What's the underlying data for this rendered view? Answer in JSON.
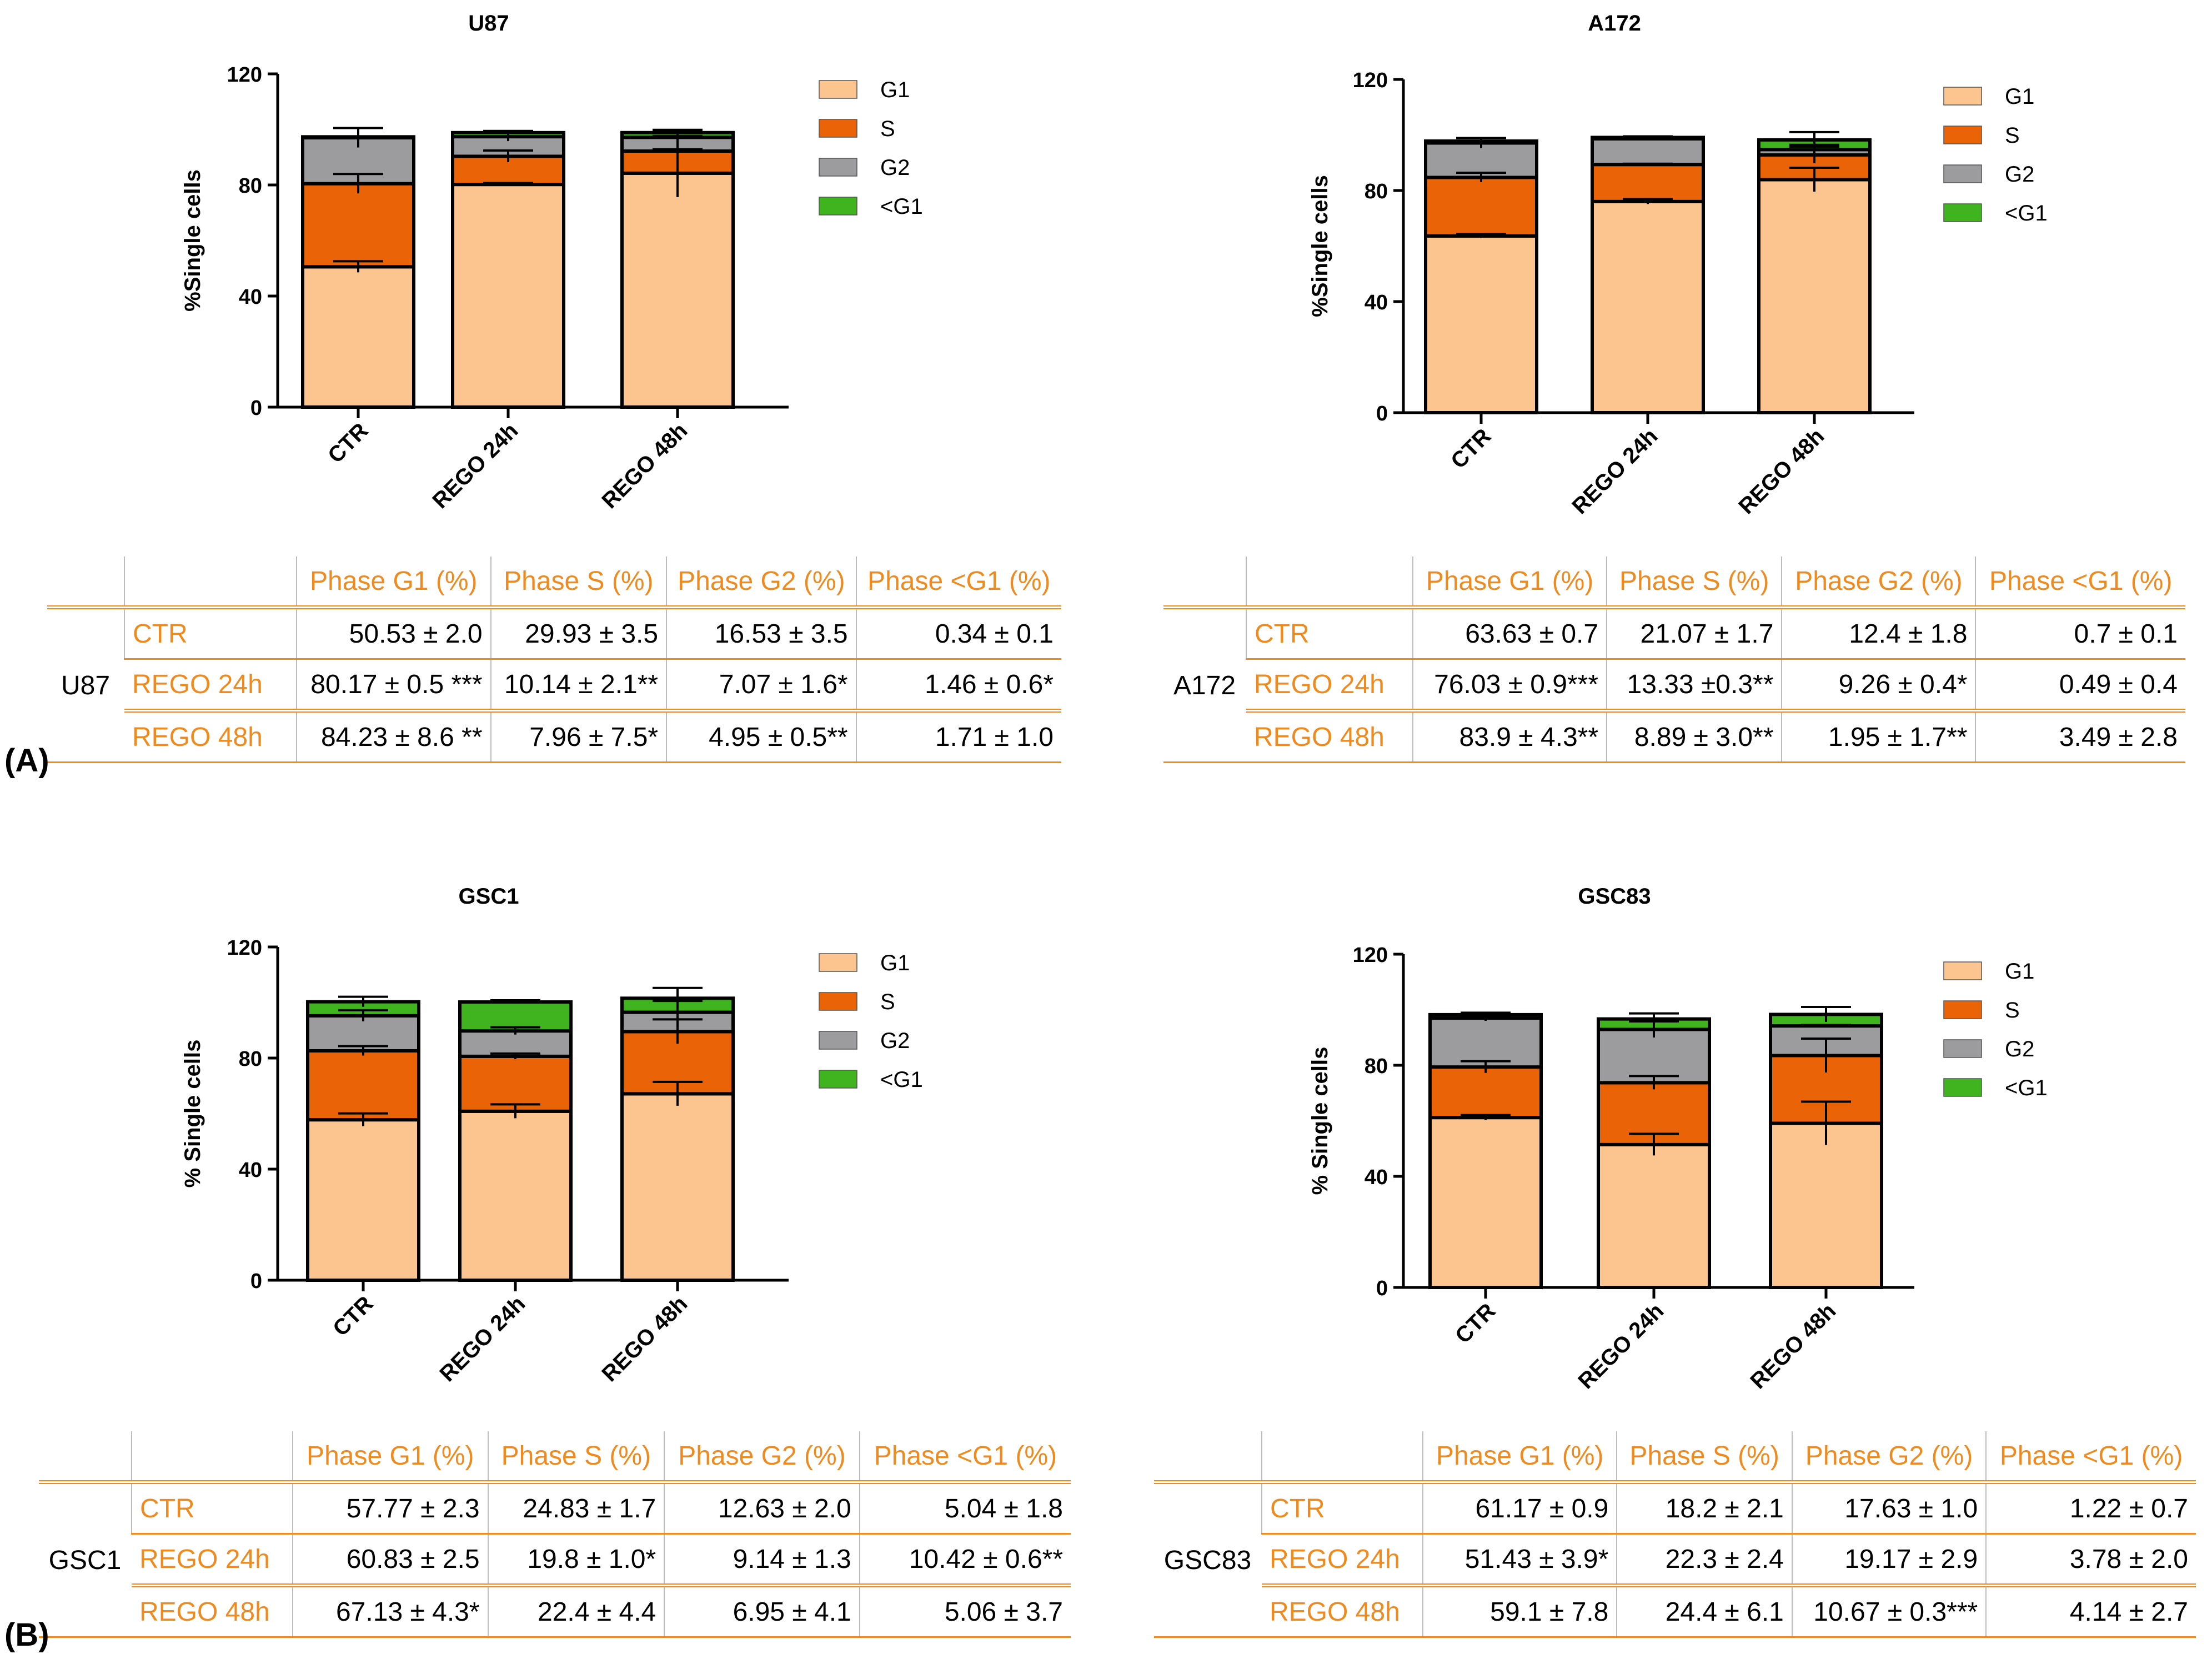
{
  "colors": {
    "G1": "#fcc590",
    "S": "#eb6307",
    "G2": "#9c9c9f",
    "subG1": "#3fb41e",
    "accent": "#ef8a1f"
  },
  "panel_labels": {
    "a": "(A)",
    "b": "(B)"
  },
  "chart_data": [
    {
      "type": "bar",
      "stacked": true,
      "title": "U87",
      "ylabel": "%Single cells",
      "ylim": [
        0,
        120
      ],
      "yticks": [
        0,
        40,
        80,
        120
      ],
      "categories": [
        "CTR",
        "REGO 24h",
        "REGO 48h"
      ],
      "legend": [
        "G1",
        "S",
        "G2",
        "<G1"
      ],
      "series": [
        {
          "name": "G1",
          "color_key": "G1",
          "values": [
            50.53,
            80.17,
            84.23
          ],
          "errors": [
            2.0,
            0.5,
            8.6
          ]
        },
        {
          "name": "S",
          "color_key": "S",
          "values": [
            29.93,
            10.14,
            7.96
          ],
          "errors": [
            3.5,
            2.1,
            7.5
          ]
        },
        {
          "name": "G2",
          "color_key": "G2",
          "values": [
            16.53,
            7.07,
            4.95
          ],
          "errors": [
            3.5,
            1.6,
            0.5
          ]
        },
        {
          "name": "<G1",
          "color_key": "subG1",
          "values": [
            0.34,
            1.46,
            1.71
          ],
          "errors": [
            0.1,
            0.6,
            1.0
          ]
        }
      ]
    },
    {
      "type": "bar",
      "stacked": true,
      "title": "A172",
      "ylabel": "%Single cells",
      "ylim": [
        0,
        120
      ],
      "yticks": [
        0,
        40,
        80,
        120
      ],
      "categories": [
        "CTR",
        "REGO 24h",
        "REGO 48h"
      ],
      "legend": [
        "G1",
        "S",
        "G2",
        "<G1"
      ],
      "series": [
        {
          "name": "G1",
          "color_key": "G1",
          "values": [
            63.63,
            76.03,
            83.9
          ],
          "errors": [
            0.7,
            0.9,
            4.3
          ]
        },
        {
          "name": "S",
          "color_key": "S",
          "values": [
            21.07,
            13.33,
            8.89
          ],
          "errors": [
            1.7,
            0.3,
            3.0
          ]
        },
        {
          "name": "G2",
          "color_key": "G2",
          "values": [
            12.4,
            9.26,
            1.95
          ],
          "errors": [
            1.8,
            0.4,
            1.7
          ]
        },
        {
          "name": "<G1",
          "color_key": "subG1",
          "values": [
            0.7,
            0.49,
            3.49
          ],
          "errors": [
            0.1,
            0.4,
            2.8
          ]
        }
      ]
    },
    {
      "type": "bar",
      "stacked": true,
      "title": "GSC1",
      "ylabel": "% Single cells",
      "ylim": [
        0,
        120
      ],
      "yticks": [
        0,
        40,
        80,
        120
      ],
      "categories": [
        "CTR",
        "REGO 24h",
        "REGO 48h"
      ],
      "legend": [
        "G1",
        "S",
        "G2",
        "<G1"
      ],
      "series": [
        {
          "name": "G1",
          "color_key": "G1",
          "values": [
            57.77,
            60.83,
            67.13
          ],
          "errors": [
            2.3,
            2.5,
            4.3
          ]
        },
        {
          "name": "S",
          "color_key": "S",
          "values": [
            24.83,
            19.8,
            22.4
          ],
          "errors": [
            1.7,
            1.0,
            4.4
          ]
        },
        {
          "name": "G2",
          "color_key": "G2",
          "values": [
            12.63,
            9.14,
            6.95
          ],
          "errors": [
            2.0,
            1.3,
            4.1
          ]
        },
        {
          "name": "<G1",
          "color_key": "subG1",
          "values": [
            5.04,
            10.42,
            5.06
          ],
          "errors": [
            1.8,
            0.6,
            3.7
          ]
        }
      ]
    },
    {
      "type": "bar",
      "stacked": true,
      "title": "GSC83",
      "ylabel": "% Single cells",
      "ylim": [
        0,
        120
      ],
      "yticks": [
        0,
        40,
        80,
        120
      ],
      "categories": [
        "CTR",
        "REGO 24h",
        "REGO 48h"
      ],
      "legend": [
        "G1",
        "S",
        "G2",
        "<G1"
      ],
      "series": [
        {
          "name": "G1",
          "color_key": "G1",
          "values": [
            61.17,
            51.43,
            59.1
          ],
          "errors": [
            0.9,
            3.9,
            7.8
          ]
        },
        {
          "name": "S",
          "color_key": "S",
          "values": [
            18.2,
            22.3,
            24.4
          ],
          "errors": [
            2.1,
            2.4,
            6.1
          ]
        },
        {
          "name": "G2",
          "color_key": "G2",
          "values": [
            17.63,
            19.17,
            10.67
          ],
          "errors": [
            1.0,
            2.9,
            0.3
          ]
        },
        {
          "name": "<G1",
          "color_key": "subG1",
          "values": [
            1.22,
            3.78,
            4.14
          ],
          "errors": [
            0.7,
            2.0,
            2.7
          ]
        }
      ]
    }
  ],
  "tables": [
    {
      "line": "U87",
      "headers": [
        "Phase G1 (%)",
        "Phase S (%)",
        "Phase G2 (%)",
        "Phase <G1 (%)"
      ],
      "rows": [
        {
          "condition": "CTR",
          "cells": [
            "50.53 ± 2.0",
            "29.93 ± 3.5",
            "16.53 ± 3.5",
            "0.34 ± 0.1"
          ]
        },
        {
          "condition": "REGO 24h",
          "cells": [
            "80.17 ± 0.5 ***",
            "10.14 ± 2.1**",
            "7.07 ± 1.6*",
            "1.46 ± 0.6*"
          ]
        },
        {
          "condition": "REGO 48h",
          "cells": [
            "84.23 ± 8.6 **",
            "7.96 ± 7.5*",
            "4.95 ± 0.5**",
            "1.71 ± 1.0"
          ]
        }
      ]
    },
    {
      "line": "A172",
      "headers": [
        "Phase G1 (%)",
        "Phase S (%)",
        "Phase G2 (%)",
        "Phase <G1 (%)"
      ],
      "rows": [
        {
          "condition": "CTR",
          "cells": [
            "63.63 ± 0.7",
            "21.07 ± 1.7",
            "12.4 ± 1.8",
            "0.7 ± 0.1"
          ]
        },
        {
          "condition": "REGO 24h",
          "cells": [
            "76.03 ± 0.9***",
            "13.33 ±0.3**",
            "9.26 ± 0.4*",
            "0.49 ± 0.4"
          ]
        },
        {
          "condition": "REGO 48h",
          "cells": [
            "83.9 ± 4.3**",
            "8.89 ± 3.0**",
            "1.95 ± 1.7**",
            "3.49 ± 2.8"
          ]
        }
      ]
    },
    {
      "line": "GSC1",
      "headers": [
        "Phase G1 (%)",
        "Phase S (%)",
        "Phase G2 (%)",
        "Phase <G1 (%)"
      ],
      "rows": [
        {
          "condition": "CTR",
          "cells": [
            "57.77 ± 2.3",
            "24.83 ± 1.7",
            "12.63 ± 2.0",
            "5.04 ± 1.8"
          ]
        },
        {
          "condition": "REGO 24h",
          "cells": [
            "60.83 ± 2.5",
            "19.8 ± 1.0*",
            "9.14 ± 1.3",
            "10.42 ± 0.6**"
          ]
        },
        {
          "condition": "REGO 48h",
          "cells": [
            "67.13 ± 4.3*",
            "22.4 ± 4.4",
            "6.95 ± 4.1",
            "5.06 ± 3.7"
          ]
        }
      ]
    },
    {
      "line": "GSC83",
      "headers": [
        "Phase G1 (%)",
        "Phase S (%)",
        "Phase G2 (%)",
        "Phase <G1 (%)"
      ],
      "rows": [
        {
          "condition": "CTR",
          "cells": [
            "61.17 ± 0.9",
            "18.2 ± 2.1",
            "17.63 ± 1.0",
            "1.22 ± 0.7"
          ]
        },
        {
          "condition": "REGO 24h",
          "cells": [
            "51.43 ± 3.9*",
            "22.3 ± 2.4",
            "19.17 ± 2.9",
            "3.78 ± 2.0"
          ]
        },
        {
          "condition": "REGO 48h",
          "cells": [
            "59.1 ± 7.8",
            "24.4 ± 6.1",
            "10.67 ± 0.3***",
            "4.14 ± 2.7"
          ]
        }
      ]
    }
  ]
}
